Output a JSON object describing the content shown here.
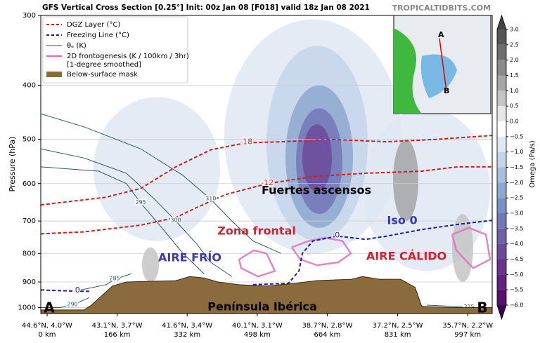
{
  "chart_data": {
    "type": "cross-section",
    "title": "GFS Vertical Cross Section [0.25°] Init: 00z Jan 08 [F018] valid 18z Jan 08 2021",
    "source": "TROPICALTIDBITS.COM",
    "ylabel": "Pressure (hPa)",
    "ylim": [
      1025,
      300
    ],
    "log_scale": true,
    "yticks": [
      300,
      400,
      500,
      600,
      700,
      800,
      900,
      1000
    ],
    "xlim": [
      -15,
      1055
    ],
    "xticks": [
      {
        "value": 0,
        "label": "0 km"
      },
      {
        "value": 166,
        "label": "166 km"
      },
      {
        "value": 332,
        "label": "332 km"
      },
      {
        "value": 498,
        "label": "498 km"
      },
      {
        "value": 664,
        "label": "664 km"
      },
      {
        "value": 831,
        "label": "831 km"
      },
      {
        "value": 997,
        "label": "997 km"
      }
    ],
    "xtick_coords": [
      "44.6°N, 4.0°W",
      "43.1°N, 3.7°W",
      "41.6°N, 3.4°W",
      "40.1°N, 3.1°W",
      "38.7°N, 2.8°W",
      "37.2°N, 2.5°W",
      "35.7°N, 2.2°W"
    ],
    "legend": [
      {
        "name": "DGZ Layer (°C)",
        "color": "#cc2020",
        "style": "dashed"
      },
      {
        "name": "Freezing Line (°C)",
        "color": "#1c1ca8",
        "style": "dashed"
      },
      {
        "name": "θₑ (K)",
        "color": "#2b5a60",
        "style": "solid"
      },
      {
        "name": "2D frontogenesis (K / 100km / 3hr)",
        "name2": "[1-degree smoothed]",
        "color": "#e070c0",
        "style": "thick"
      },
      {
        "name": "Below-surface mask",
        "color": "#8b6a3e",
        "style": "patch"
      }
    ],
    "colorbar": {
      "label": "Omega (Pa/s)",
      "lim": [
        -6,
        3
      ],
      "ticks": [
        {
          "value": 3,
          "label": "3.0"
        },
        {
          "value": 2.5,
          "label": "2.5"
        },
        {
          "value": 2,
          "label": "2.0"
        },
        {
          "value": 1.5,
          "label": "1.5"
        },
        {
          "value": 1,
          "label": "1.0"
        },
        {
          "value": 0.5,
          "label": "0.5"
        },
        {
          "value": 0,
          "label": "0.0"
        },
        {
          "value": -0.5,
          "label": "−0.5"
        },
        {
          "value": -1,
          "label": "−1.0"
        },
        {
          "value": -1.5,
          "label": "−1.5"
        },
        {
          "value": -2,
          "label": "−2.0"
        },
        {
          "value": -2.5,
          "label": "−2.5"
        },
        {
          "value": -3,
          "label": "−3.0"
        },
        {
          "value": -3.5,
          "label": "−3.5"
        },
        {
          "value": -4,
          "label": "−4.0"
        },
        {
          "value": -4.5,
          "label": "−4.5"
        },
        {
          "value": -5,
          "label": "−5.0"
        },
        {
          "value": -5.5,
          "label": "−5.5"
        },
        {
          "value": -6,
          "label": "−6.0"
        }
      ],
      "colors": [
        "#555555",
        "#6e6e6e",
        "#8a8a8a",
        "#a5a5a5",
        "#c4c4c4",
        "#e6e6e6",
        "#ffffff",
        "#dfe8f3",
        "#c4d5ea",
        "#a7bfdc",
        "#8ea8cf",
        "#7a8fc2",
        "#7377b5",
        "#7060a8",
        "#6c4a9b",
        "#6a338e",
        "#65217f",
        "#5a0f6e"
      ],
      "over": "#444444",
      "under": "#3d0050"
    },
    "omega_cells": [
      {
        "x": 630,
        "y": 530,
        "dx": 210,
        "ytop": 305,
        "ybottom": 800,
        "value": -0.75
      },
      {
        "x": 260,
        "y": 560,
        "dx": 150,
        "ytop": 420,
        "ybottom": 760,
        "value": -0.75
      },
      {
        "x": 900,
        "y": 620,
        "dx": 150,
        "ytop": 440,
        "ybottom": 860,
        "value": -0.75
      },
      {
        "x": 640,
        "y": 540,
        "dx": 120,
        "ytop": 340,
        "ybottom": 760,
        "value": -1.25
      },
      {
        "x": 645,
        "y": 545,
        "dx": 80,
        "ytop": 400,
        "ybottom": 720,
        "value": -2.25
      },
      {
        "x": 645,
        "y": 545,
        "dx": 55,
        "ytop": 440,
        "ybottom": 680,
        "value": -3.25
      },
      {
        "x": 640,
        "y": 545,
        "dx": 35,
        "ytop": 470,
        "ybottom": 620,
        "value": -4.25
      },
      {
        "x": 850,
        "y": 580,
        "dx": 30,
        "ytop": 500,
        "ybottom": 700,
        "value": 1.25
      },
      {
        "x": 985,
        "y": 800,
        "dx": 25,
        "ytop": 680,
        "ybottom": 900,
        "value": 0.75
      },
      {
        "x": 245,
        "y": 850,
        "dx": 20,
        "ytop": 780,
        "ybottom": 900,
        "value": 0.75
      }
    ],
    "terrain": {
      "x": [
        -15,
        88,
        105,
        155,
        188,
        305,
        338,
        372,
        405,
        455,
        522,
        588,
        638,
        722,
        747,
        788,
        838,
        872,
        888,
        955,
        1055
      ],
      "y": [
        1010,
        1010,
        990,
        915,
        900,
        895,
        880,
        885,
        900,
        910,
        915,
        905,
        895,
        890,
        880,
        890,
        890,
        920,
        995,
        1000,
        1000
      ],
      "color": "#8b6a3e"
    },
    "contours": [
      {
        "kind": "dgz",
        "level": -18,
        "x": [
          -15,
          138,
          222,
          305,
          388,
          472,
          555,
          672,
          805,
          922,
          1055
        ],
        "y": [
          655,
          635,
          612,
          560,
          522,
          507,
          505,
          500,
          505,
          500,
          492
        ]
      },
      {
        "kind": "dgz",
        "level": -12,
        "x": [
          -15,
          88,
          222,
          305,
          355,
          422,
          522,
          638,
          755,
          888,
          972,
          1055
        ],
        "y": [
          738,
          732,
          712,
          690,
          662,
          628,
          600,
          582,
          575,
          570,
          560,
          560
        ]
      },
      {
        "kind": "freezing",
        "level": 0,
        "x": [
          -15,
          72,
          100
        ],
        "y": [
          930,
          935,
          935
        ]
      },
      {
        "kind": "freezing",
        "level": 0,
        "x": [
          488,
          572,
          597,
          605,
          630,
          688,
          755,
          805,
          888,
          972,
          1055
        ],
        "y": [
          910,
          905,
          860,
          800,
          760,
          745,
          755,
          745,
          725,
          710,
          698
        ]
      },
      {
        "kind": "theta",
        "level": 310,
        "x": [
          -15,
          88,
          222,
          322,
          388,
          438,
          488,
          555
        ],
        "y": [
          450,
          475,
          520,
          580,
          640,
          700,
          760,
          800
        ]
      },
      {
        "kind": "theta",
        "level": 300,
        "x": [
          -15,
          88,
          188,
          255,
          305,
          355,
          388,
          438
        ],
        "y": [
          520,
          540,
          575,
          640,
          700,
          770,
          830,
          880
        ]
      },
      {
        "kind": "theta",
        "level": 295,
        "x": [
          -15,
          122,
          188,
          222,
          272,
          322,
          372
        ],
        "y": [
          560,
          570,
          600,
          650,
          720,
          800,
          870
        ]
      },
      {
        "kind": "theta",
        "level": 290,
        "x": [
          -15,
          30,
          60,
          100
        ],
        "y": [
          1000,
          1000,
          990,
          960
        ]
      },
      {
        "kind": "theta",
        "level": 285,
        "x": [
          80,
          140,
          160,
          200
        ],
        "y": [
          930,
          910,
          890,
          870
        ]
      },
      {
        "kind": "theta",
        "level": 315,
        "x": [
          900,
          960,
          1000,
          1055
        ],
        "y": [
          990,
          995,
          1000,
          1000
        ]
      }
    ],
    "frontogenesis": [
      {
        "x": [
          455,
          490,
          520,
          540,
          500,
          460,
          455
        ],
        "y": [
          820,
          790,
          800,
          860,
          880,
          850,
          820
        ]
      },
      {
        "x": [
          580,
          620,
          660,
          700,
          720,
          690,
          640,
          600,
          580
        ],
        "y": [
          780,
          760,
          750,
          760,
          800,
          830,
          840,
          820,
          780
        ]
      },
      {
        "x": [
          960,
          1000,
          1040,
          1050,
          1010,
          970,
          960
        ],
        "y": [
          740,
          720,
          740,
          820,
          850,
          790,
          740
        ]
      }
    ],
    "annotations": [
      {
        "text": "Fuertes ascensos",
        "color": "#000000"
      },
      {
        "text": "Zona frontal",
        "color": "#d62030"
      },
      {
        "text": "Iso 0",
        "color": "#3a3aaa"
      },
      {
        "text": "AIRE FRÍO",
        "color": "#3a3aaa"
      },
      {
        "text": "AIRE CÁLIDO",
        "color": "#d62030"
      },
      {
        "text": "Península Ibérica",
        "color": "#000000"
      },
      {
        "text": "A",
        "color": "#000000"
      },
      {
        "text": "B",
        "color": "#000000"
      }
    ],
    "inset_labels": [
      "A",
      "B"
    ]
  }
}
